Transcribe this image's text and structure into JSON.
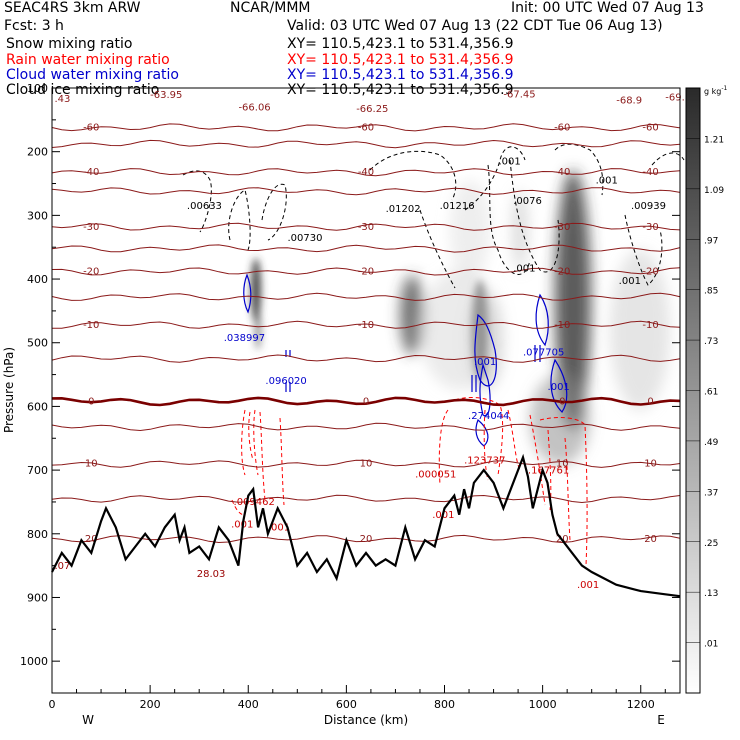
{
  "header": {
    "model": "SEAC4RS   3km ARW",
    "org": "NCAR/MMM",
    "init": "Init: 00 UTC Wed 07 Aug 13",
    "fcst": "Fcst:    3 h",
    "valid": "Valid: 03 UTC Wed 07 Aug 13 (22 CDT Tue 06 Aug 13)",
    "fields": [
      {
        "name": "Snow mixing ratio",
        "xy": "XY= 110.5,423.1 to 531.4,356.9",
        "color": "#000000"
      },
      {
        "name": "Rain water mixing ratio",
        "xy": "XY= 110.5,423.1 to 531.4,356.9",
        "color": "#ff0000"
      },
      {
        "name": "Cloud water mixing ratio",
        "xy": "XY= 110.5,423.1 to 531.4,356.9",
        "color": "#0000cc"
      },
      {
        "name": "Cloud ice mixing ratio",
        "xy": "XY= 110.5,423.1 to 531.4,356.9",
        "color": "#000000"
      }
    ]
  },
  "chart_data": {
    "type": "heatmap",
    "xlabel": "Distance (km)",
    "ylabel": "Pressure (hPa)",
    "xlim": [
      0,
      1280
    ],
    "ylim": [
      1050,
      100
    ],
    "x_ticks": [
      0,
      200,
      400,
      600,
      800,
      1000,
      1200
    ],
    "y_ticks": [
      100,
      200,
      300,
      400,
      500,
      600,
      700,
      800,
      900,
      1000
    ],
    "x_end_labels": {
      "left": "W",
      "right": "E"
    },
    "colorbar": {
      "unit": "g kg",
      "unit_exp": "-1",
      "labels": [
        ".01",
        ".13",
        ".25",
        ".37",
        ".49",
        ".61",
        ".73",
        ".85",
        ".97",
        "1.09",
        "1.21"
      ]
    },
    "temperature_contours": [
      {
        "value": -60,
        "label": "-60",
        "p": 162
      },
      {
        "value": -50,
        "label": "",
        "p": 188
      },
      {
        "value": -40,
        "label": "-40",
        "p": 232
      },
      {
        "value": -35,
        "label": "",
        "p": 262
      },
      {
        "value": -30,
        "label": "-30",
        "p": 318
      },
      {
        "value": -25,
        "label": "",
        "p": 352
      },
      {
        "value": -20,
        "label": "-20",
        "p": 388
      },
      {
        "value": -15,
        "label": "",
        "p": 428
      },
      {
        "value": -10,
        "label": "-10",
        "p": 472
      },
      {
        "value": -5,
        "label": "",
        "p": 525
      },
      {
        "value": 0,
        "label": "0",
        "p": 592
      },
      {
        "value": 5,
        "label": "",
        "p": 632
      },
      {
        "value": 10,
        "label": "10",
        "p": 690
      },
      {
        "value": 15,
        "label": "",
        "p": 745
      },
      {
        "value": 20,
        "label": "20",
        "p": 808
      }
    ],
    "top_labels": [
      {
        "text": ".43",
        "x": 5,
        "p": 122
      },
      {
        "text": "-63.95",
        "x": 200,
        "p": 116
      },
      {
        "text": "-66.06",
        "x": 380,
        "p": 135
      },
      {
        "text": "-66.25",
        "x": 620,
        "p": 138
      },
      {
        "text": "-67.45",
        "x": 920,
        "p": 115
      },
      {
        "text": "-68.9",
        "x": 1150,
        "p": 124
      },
      {
        "text": "-69.",
        "x": 1250,
        "p": 120
      }
    ],
    "maxima_labels": [
      {
        "text": ".00633",
        "x": 275,
        "p": 290,
        "color": "#000000"
      },
      {
        "text": ".00730",
        "x": 480,
        "p": 340,
        "color": "#000000"
      },
      {
        "text": ".01202",
        "x": 680,
        "p": 295,
        "color": "#000000"
      },
      {
        "text": ".01216",
        "x": 790,
        "p": 290,
        "color": "#000000"
      },
      {
        "text": ".0076",
        "x": 940,
        "p": 282,
        "color": "#000000"
      },
      {
        "text": ".001",
        "x": 910,
        "p": 220,
        "color": "#000000"
      },
      {
        "text": ".001",
        "x": 1108,
        "p": 250,
        "color": "#000000"
      },
      {
        "text": ".001",
        "x": 940,
        "p": 388,
        "color": "#000000"
      },
      {
        "text": ".00939",
        "x": 1180,
        "p": 290,
        "color": "#000000"
      },
      {
        "text": ".001",
        "x": 1155,
        "p": 408,
        "color": "#000000"
      },
      {
        "text": ".038997",
        "x": 350,
        "p": 497,
        "color": "#0000cc"
      },
      {
        "text": ".096020",
        "x": 435,
        "p": 565,
        "color": "#0000cc"
      },
      {
        "text": ".001",
        "x": 860,
        "p": 535,
        "color": "#0000cc"
      },
      {
        "text": ".077705",
        "x": 960,
        "p": 520,
        "color": "#0000cc"
      },
      {
        "text": ".001",
        "x": 1010,
        "p": 574,
        "color": "#0000cc"
      },
      {
        "text": ".274044",
        "x": 848,
        "p": 620,
        "color": "#0000cc"
      },
      {
        "text": ".123737",
        "x": 840,
        "p": 690,
        "color": "#cc0000"
      },
      {
        "text": ".167761",
        "x": 970,
        "p": 705,
        "color": "#cc0000"
      },
      {
        "text": ".000051",
        "x": 740,
        "p": 712,
        "color": "#cc0000"
      },
      {
        "text": ".009462",
        "x": 370,
        "p": 755,
        "color": "#cc0000"
      },
      {
        "text": ".001",
        "x": 365,
        "p": 790,
        "color": "#cc0000"
      },
      {
        "text": ".001",
        "x": 440,
        "p": 795,
        "color": "#cc0000"
      },
      {
        "text": ".001",
        "x": 775,
        "p": 775,
        "color": "#cc0000"
      },
      {
        "text": ".001",
        "x": 1070,
        "p": 885,
        "color": "#cc0000"
      },
      {
        "text": "28.03",
        "x": 295,
        "p": 868,
        "color": "#990000"
      },
      {
        "text": ".07",
        "x": 5,
        "p": 855,
        "color": "#990000"
      }
    ],
    "terrain": {
      "x": [
        0,
        20,
        40,
        60,
        80,
        100,
        110,
        130,
        150,
        170,
        190,
        210,
        230,
        250,
        260,
        270,
        280,
        300,
        320,
        340,
        360,
        380,
        390,
        400,
        410,
        420,
        430,
        440,
        450,
        460,
        480,
        500,
        520,
        540,
        560,
        580,
        600,
        620,
        640,
        660,
        680,
        700,
        720,
        740,
        760,
        780,
        800,
        820,
        830,
        840,
        850,
        860,
        880,
        900,
        920,
        940,
        960,
        970,
        980,
        1000,
        1010,
        1020,
        1030,
        1040,
        1060,
        1080,
        1100,
        1150,
        1200,
        1250,
        1280
      ],
      "p": [
        860,
        830,
        850,
        810,
        830,
        780,
        760,
        790,
        840,
        820,
        800,
        820,
        790,
        770,
        810,
        790,
        830,
        820,
        840,
        790,
        810,
        850,
        780,
        740,
        730,
        790,
        760,
        800,
        780,
        760,
        790,
        850,
        830,
        860,
        840,
        870,
        810,
        850,
        830,
        850,
        840,
        850,
        790,
        840,
        810,
        820,
        760,
        740,
        770,
        730,
        760,
        720,
        700,
        720,
        760,
        720,
        680,
        710,
        760,
        700,
        720,
        770,
        800,
        810,
        830,
        850,
        860,
        880,
        890,
        895,
        898
      ]
    }
  }
}
